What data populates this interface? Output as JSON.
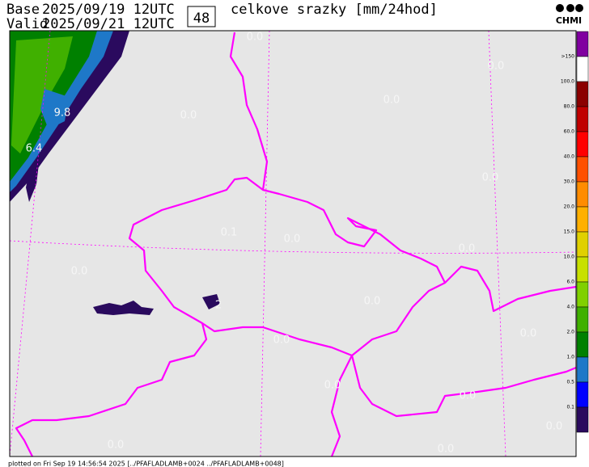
{
  "header": {
    "base_label": "Base",
    "base_time": "2025/09/19 12UTC",
    "valid_label": "Valid",
    "valid_time": "2025/09/21 12UTC",
    "step": "48",
    "title": "celkove srazky [mm/24hod]",
    "logo": "CHMI"
  },
  "legend": {
    "labels": [
      ">150",
      "100.0",
      "80.0",
      "60.0",
      "40.0",
      "30.0",
      "20.0",
      "15.0",
      "10.0",
      "6.0",
      "4.0",
      "2.0",
      "1.0",
      "0.5",
      "0.1"
    ]
  },
  "map": {
    "labels": [
      "0.0",
      "0.0",
      "0.0",
      "0.0",
      "9.8",
      "6.4",
      "0.0",
      "0.1",
      "0.0",
      "0.0",
      "0.0",
      "2",
      "0.0",
      "0.0",
      "0.0",
      "0.0",
      "0.0",
      "0.0",
      "0.0",
      "0.0"
    ]
  },
  "footer": "plotted on Fri Sep 19 14:56:54 2025 [../PFAFLADLAMB+0024 ../PFAFLADLAMB+0048]"
}
